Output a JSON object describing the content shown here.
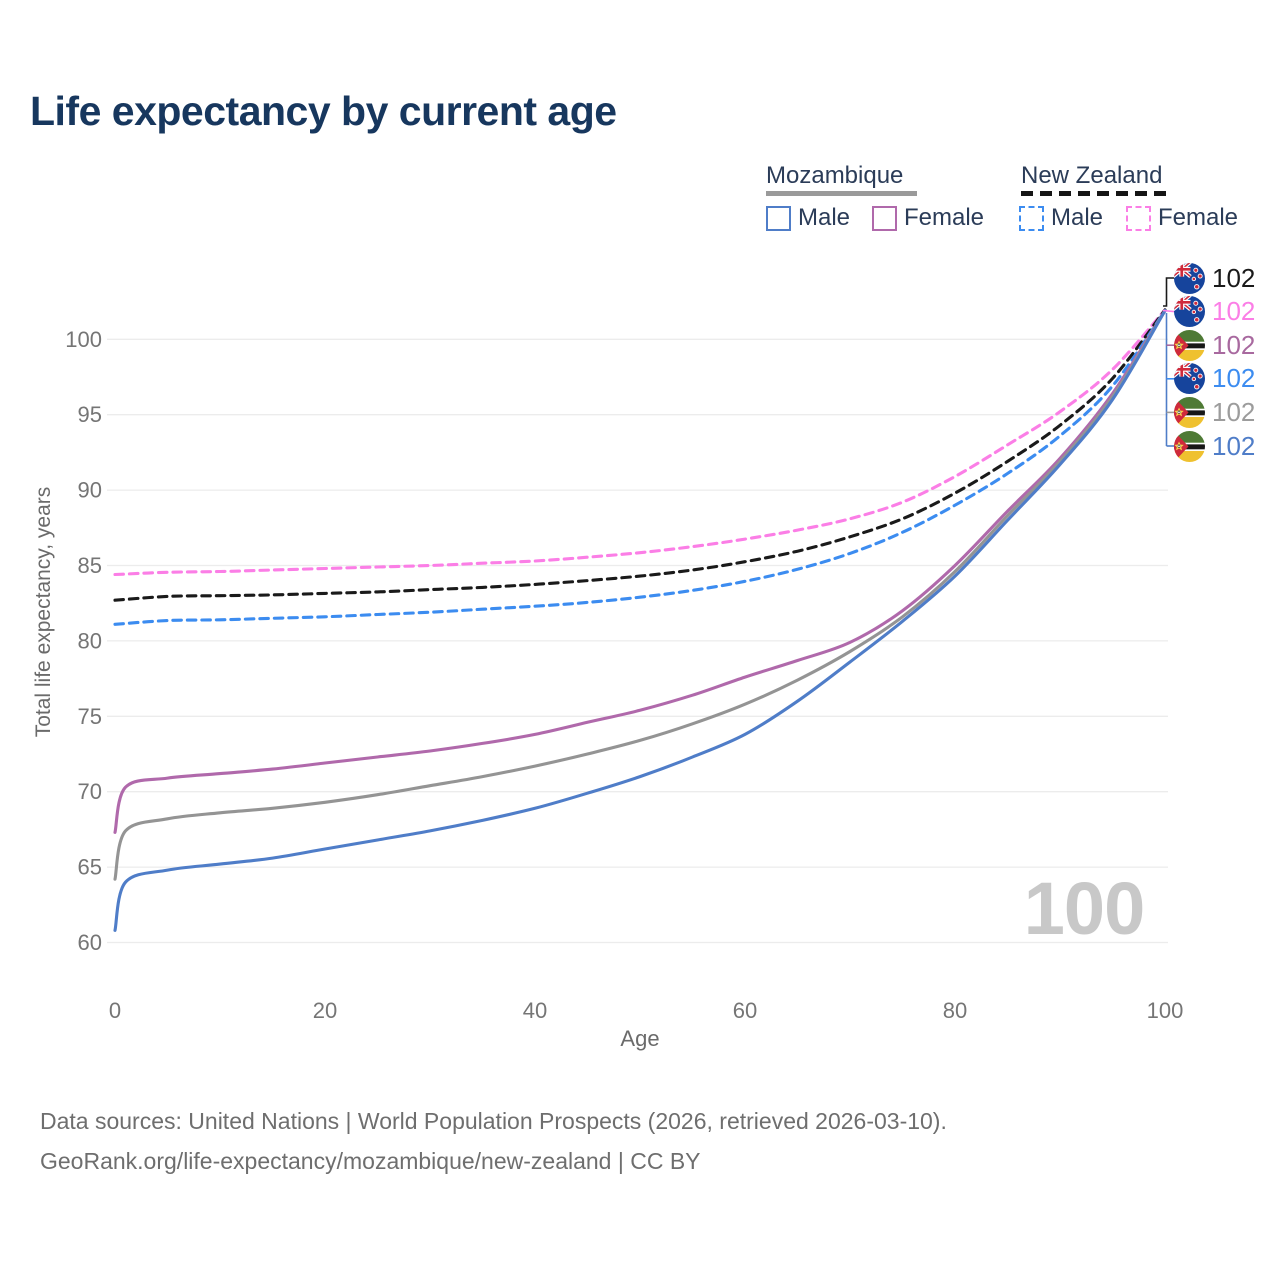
{
  "title": "Life expectancy by current age",
  "legend": {
    "groups": [
      {
        "label": "Mozambique",
        "line_style": "solid",
        "underline_color": "#9a9a9a",
        "items": [
          {
            "label": "Male",
            "color": "#4f7dc8"
          },
          {
            "label": "Female",
            "color": "#b069ab"
          }
        ]
      },
      {
        "label": "New Zealand",
        "line_style": "dashed",
        "underline_color": "#151515",
        "items": [
          {
            "label": "Male",
            "color": "#3c8cf0"
          },
          {
            "label": "Female",
            "color": "#fb7ee6"
          }
        ]
      }
    ]
  },
  "chart_data": {
    "type": "line",
    "title": "Life expectancy by current age",
    "xlabel": "Age",
    "ylabel": "Total life expectancy, years",
    "xlim": [
      0,
      100
    ],
    "ylim": [
      60,
      102
    ],
    "xticks": [
      0,
      20,
      40,
      60,
      80,
      100
    ],
    "yticks": [
      60,
      65,
      70,
      75,
      80,
      85,
      90,
      95,
      100
    ],
    "grid": "horizontal",
    "series": [
      {
        "name": "New Zealand Female",
        "color": "#fb7ee6",
        "dashed": true,
        "points": [
          [
            0,
            84.4
          ],
          [
            5,
            84.55
          ],
          [
            10,
            84.6
          ],
          [
            15,
            84.7
          ],
          [
            20,
            84.8
          ],
          [
            25,
            84.9
          ],
          [
            30,
            85.0
          ],
          [
            35,
            85.15
          ],
          [
            40,
            85.3
          ],
          [
            45,
            85.55
          ],
          [
            50,
            85.85
          ],
          [
            55,
            86.25
          ],
          [
            60,
            86.75
          ],
          [
            65,
            87.35
          ],
          [
            70,
            88.1
          ],
          [
            75,
            89.2
          ],
          [
            80,
            90.9
          ],
          [
            85,
            93.0
          ],
          [
            90,
            95.2
          ],
          [
            95,
            98.0
          ],
          [
            100,
            101.95
          ]
        ]
      },
      {
        "name": "New Zealand Total",
        "color": "#1a1a1a",
        "dashed": true,
        "points": [
          [
            0,
            82.7
          ],
          [
            5,
            82.95
          ],
          [
            10,
            83.0
          ],
          [
            15,
            83.05
          ],
          [
            20,
            83.15
          ],
          [
            25,
            83.25
          ],
          [
            30,
            83.4
          ],
          [
            35,
            83.55
          ],
          [
            40,
            83.75
          ],
          [
            45,
            84.0
          ],
          [
            50,
            84.3
          ],
          [
            55,
            84.7
          ],
          [
            60,
            85.25
          ],
          [
            65,
            85.95
          ],
          [
            70,
            86.9
          ],
          [
            75,
            88.1
          ],
          [
            80,
            89.8
          ],
          [
            85,
            91.9
          ],
          [
            90,
            94.3
          ],
          [
            95,
            97.4
          ],
          [
            100,
            101.95
          ]
        ]
      },
      {
        "name": "New Zealand Male",
        "color": "#3c8cf0",
        "dashed": true,
        "points": [
          [
            0,
            81.1
          ],
          [
            5,
            81.35
          ],
          [
            10,
            81.4
          ],
          [
            15,
            81.5
          ],
          [
            20,
            81.6
          ],
          [
            25,
            81.75
          ],
          [
            30,
            81.9
          ],
          [
            35,
            82.1
          ],
          [
            40,
            82.3
          ],
          [
            45,
            82.55
          ],
          [
            50,
            82.9
          ],
          [
            55,
            83.35
          ],
          [
            60,
            83.95
          ],
          [
            65,
            84.75
          ],
          [
            70,
            85.8
          ],
          [
            75,
            87.2
          ],
          [
            80,
            89.0
          ],
          [
            85,
            91.1
          ],
          [
            90,
            93.6
          ],
          [
            95,
            96.9
          ],
          [
            100,
            101.9
          ]
        ]
      },
      {
        "name": "Mozambique Female",
        "color": "#b069ab",
        "dashed": false,
        "points": [
          [
            0,
            67.3
          ],
          [
            1,
            70.3
          ],
          [
            5,
            70.9
          ],
          [
            10,
            71.2
          ],
          [
            15,
            71.5
          ],
          [
            20,
            71.9
          ],
          [
            25,
            72.3
          ],
          [
            30,
            72.7
          ],
          [
            35,
            73.2
          ],
          [
            40,
            73.8
          ],
          [
            45,
            74.6
          ],
          [
            50,
            75.4
          ],
          [
            55,
            76.4
          ],
          [
            60,
            77.6
          ],
          [
            65,
            78.7
          ],
          [
            70,
            79.9
          ],
          [
            75,
            82.0
          ],
          [
            80,
            85.0
          ],
          [
            85,
            88.6
          ],
          [
            90,
            92.1
          ],
          [
            95,
            96.4
          ],
          [
            100,
            101.9
          ]
        ]
      },
      {
        "name": "Mozambique Total",
        "color": "#949494",
        "dashed": false,
        "points": [
          [
            0,
            64.2
          ],
          [
            1,
            67.4
          ],
          [
            5,
            68.2
          ],
          [
            10,
            68.6
          ],
          [
            15,
            68.9
          ],
          [
            20,
            69.3
          ],
          [
            25,
            69.8
          ],
          [
            30,
            70.4
          ],
          [
            35,
            71.0
          ],
          [
            40,
            71.7
          ],
          [
            45,
            72.5
          ],
          [
            50,
            73.4
          ],
          [
            55,
            74.5
          ],
          [
            60,
            75.8
          ],
          [
            65,
            77.4
          ],
          [
            70,
            79.3
          ],
          [
            75,
            81.6
          ],
          [
            80,
            84.6
          ],
          [
            85,
            88.3
          ],
          [
            90,
            91.9
          ],
          [
            95,
            96.2
          ],
          [
            100,
            101.9
          ]
        ]
      },
      {
        "name": "Mozambique Male",
        "color": "#4f7dc8",
        "dashed": false,
        "points": [
          [
            0,
            60.8
          ],
          [
            1,
            64.0
          ],
          [
            5,
            64.8
          ],
          [
            10,
            65.2
          ],
          [
            15,
            65.6
          ],
          [
            20,
            66.2
          ],
          [
            25,
            66.8
          ],
          [
            30,
            67.4
          ],
          [
            35,
            68.1
          ],
          [
            40,
            68.9
          ],
          [
            45,
            69.9
          ],
          [
            50,
            71.0
          ],
          [
            55,
            72.3
          ],
          [
            60,
            73.8
          ],
          [
            65,
            76.0
          ],
          [
            70,
            78.6
          ],
          [
            75,
            81.3
          ],
          [
            80,
            84.3
          ],
          [
            85,
            88.0
          ],
          [
            90,
            91.7
          ],
          [
            95,
            96.0
          ],
          [
            100,
            101.9
          ]
        ]
      }
    ]
  },
  "end_labels": [
    {
      "value": "102",
      "color": "#1a1a1a",
      "flag": "nz"
    },
    {
      "value": "102",
      "color": "#fb7ee6",
      "flag": "nz"
    },
    {
      "value": "102",
      "color": "#a8699f",
      "flag": "mz"
    },
    {
      "value": "102",
      "color": "#3c8cf0",
      "flag": "nz"
    },
    {
      "value": "102",
      "color": "#9c9c9c",
      "flag": "mz"
    },
    {
      "value": "102",
      "color": "#4f7dc8",
      "flag": "mz"
    }
  ],
  "watermark": "100",
  "footer": {
    "line1": "Data sources: United Nations | World Population Prospects (2026, retrieved 2026-03-10).",
    "line2": "GeoRank.org/life-expectancy/mozambique/new-zealand | CC BY"
  }
}
